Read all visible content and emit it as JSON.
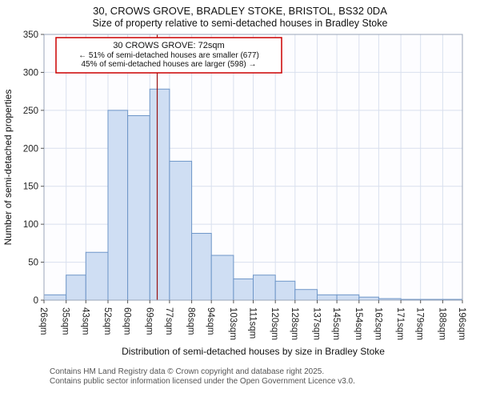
{
  "footer": {
    "line1": "Contains HM Land Registry data © Crown copyright and database right 2025.",
    "line2": "Contains public sector information licensed under the Open Government Licence v3.0."
  },
  "chart_data": {
    "type": "bar",
    "title": "30, CROWS GROVE, BRADLEY STOKE, BRISTOL, BS32 0DA",
    "subtitle": "Size of property relative to semi-detached houses in Bradley Stoke",
    "xlabel": "Distribution of semi-detached houses by size in Bradley Stoke",
    "ylabel": "Number of semi-detached properties",
    "bin_edges": [
      26,
      35,
      43,
      52,
      60,
      69,
      77,
      86,
      94,
      103,
      111,
      120,
      128,
      137,
      145,
      154,
      162,
      171,
      179,
      188,
      196
    ],
    "tick_labels": [
      "26sqm",
      "35sqm",
      "43sqm",
      "52sqm",
      "60sqm",
      "69sqm",
      "77sqm",
      "86sqm",
      "94sqm",
      "103sqm",
      "111sqm",
      "120sqm",
      "128sqm",
      "137sqm",
      "145sqm",
      "154sqm",
      "162sqm",
      "171sqm",
      "179sqm",
      "188sqm",
      "196sqm"
    ],
    "values": [
      7,
      33,
      63,
      250,
      243,
      278,
      183,
      88,
      59,
      28,
      33,
      25,
      14,
      7,
      7,
      4,
      2,
      1,
      1,
      1
    ],
    "ylim": [
      0,
      350
    ],
    "yticks": [
      0,
      50,
      100,
      150,
      200,
      250,
      300,
      350
    ],
    "grid": true,
    "legend": "none",
    "marker": {
      "value": 72,
      "color": "#991111"
    },
    "annotation": {
      "line1": "30 CROWS GROVE: 72sqm",
      "line2": "← 51% of semi-detached houses are smaller (677)",
      "line3": "45% of semi-detached houses are larger (598) →",
      "border_color": "#cc0000"
    },
    "bar_fill": "#cfdef3",
    "bar_stroke": "#6e96c8",
    "grid_color": "#d9e0ee",
    "spine_color": "#9aa5b8",
    "tick_text_color": "#222222"
  }
}
